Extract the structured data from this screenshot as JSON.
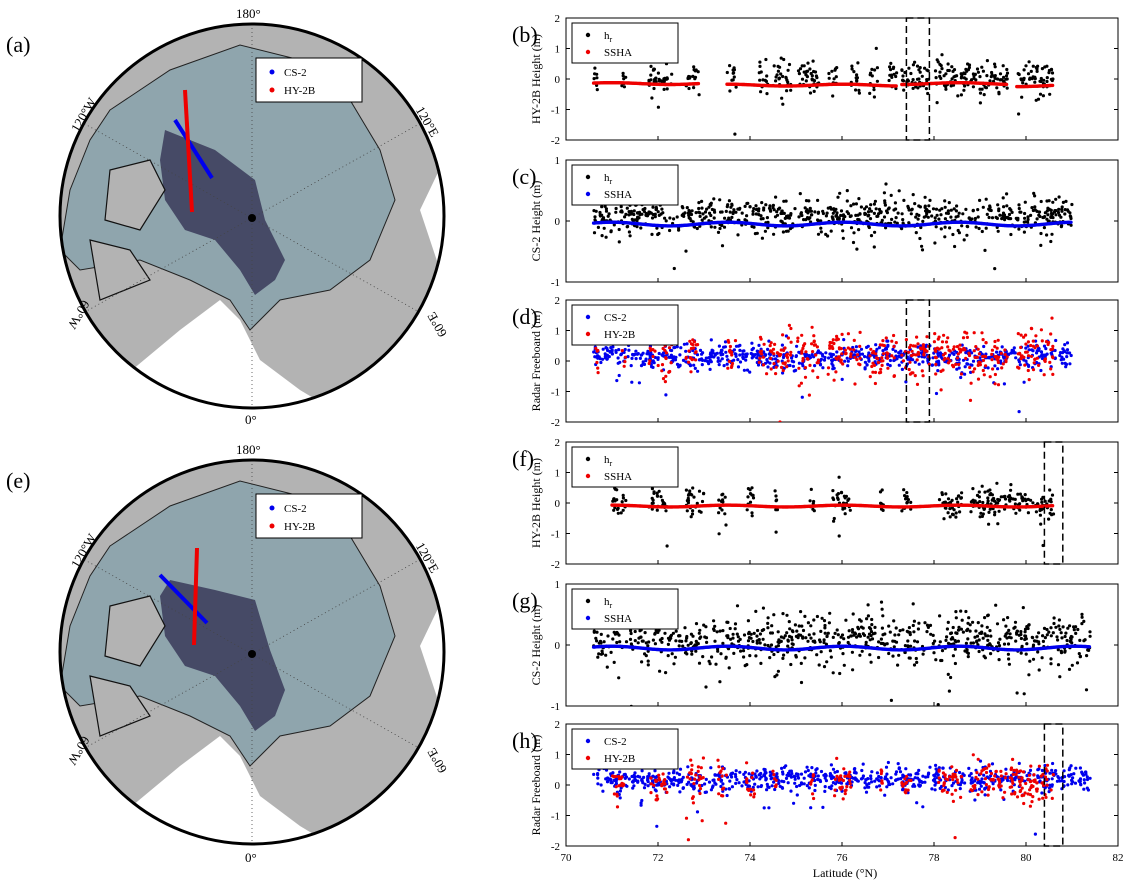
{
  "colors": {
    "land": "#b3b3b3",
    "sea_ice": "#8fa5ad",
    "mask": "#464a66",
    "ocean": "#ffffff",
    "cs2": "#0000ee",
    "hy2b": "#ee0000",
    "hr": "#000000"
  },
  "maps": [
    {
      "letter": "(a)",
      "legend": [
        "CS-2",
        "HY-2B"
      ],
      "lon_labels": {
        "top": "180°",
        "bottom": "0°",
        "upper_left": "120°W",
        "upper_right": "120°E",
        "lower_left": "60°W",
        "lower_right": "60°E"
      },
      "tracks_description": "tracks shown as lines"
    },
    {
      "letter": "(e)",
      "legend": [
        "CS-2",
        "HY-2B"
      ],
      "lon_labels": {
        "top": "180°",
        "bottom": "0°",
        "upper_left": "120°W",
        "upper_right": "120°E",
        "lower_left": "60°W",
        "lower_right": "60°E"
      }
    }
  ],
  "x_axis": {
    "label": "Latitude (°N)",
    "ticks": [
      "70",
      "72",
      "74",
      "76",
      "78",
      "80",
      "82"
    ]
  },
  "chart_data": [
    {
      "letter": "(b)",
      "type": "scatter",
      "ylabel": "HY-2B Height (m)",
      "xlim": [
        70,
        82
      ],
      "ylim": [
        -2,
        2
      ],
      "yticks": [
        "-2",
        "-1",
        "0",
        "1",
        "2"
      ],
      "legend": [
        {
          "label": "h",
          "sub": "r",
          "color": "#000000"
        },
        {
          "label": "SSHA",
          "color": "#ee0000"
        }
      ],
      "dashed_box": [
        77.4,
        77.9
      ],
      "series": [
        {
          "name": "h_r",
          "color": "#000000",
          "clusters": [
            [
              70.6,
              70.7
            ],
            [
              71.2,
              71.3
            ],
            [
              71.8,
              72.3
            ],
            [
              72.6,
              72.9
            ],
            [
              73.5,
              73.7
            ],
            [
              74.2,
              74.4
            ],
            [
              74.5,
              74.9
            ],
            [
              75.0,
              75.5
            ],
            [
              75.7,
              75.9
            ],
            [
              76.2,
              76.4
            ],
            [
              76.6,
              76.8
            ],
            [
              77.0,
              77.2
            ],
            [
              77.3,
              77.9
            ],
            [
              78.0,
              79.6
            ],
            [
              79.8,
              80.6
            ]
          ],
          "center": 0.05,
          "spread": 0.25
        },
        {
          "name": "SSHA",
          "color": "#ee0000",
          "segments": [
            [
              70.6,
              72.9,
              -0.15
            ],
            [
              73.5,
              77.2,
              -0.2
            ],
            [
              77.3,
              79.6,
              -0.15
            ],
            [
              79.8,
              80.6,
              -0.22
            ]
          ]
        }
      ]
    },
    {
      "letter": "(c)",
      "type": "scatter",
      "ylabel": "CS-2 Height (m)",
      "xlim": [
        70,
        82
      ],
      "ylim": [
        -1,
        1
      ],
      "yticks": [
        "-1",
        "0",
        "1"
      ],
      "legend": [
        {
          "label": "h",
          "sub": "r",
          "color": "#000000"
        },
        {
          "label": "SSHA",
          "color": "#0000ee"
        }
      ],
      "series": [
        {
          "name": "h_r",
          "color": "#000000",
          "clusters": [
            [
              70.6,
              81.0
            ]
          ],
          "center": 0.08,
          "spread": 0.15
        },
        {
          "name": "SSHA",
          "color": "#0000ee",
          "segments": [
            [
              70.6,
              81.0,
              -0.05
            ]
          ]
        }
      ]
    },
    {
      "letter": "(d)",
      "type": "scatter",
      "ylabel": "Radar Freeboard (m)",
      "xlim": [
        70,
        82
      ],
      "ylim": [
        -2,
        2
      ],
      "yticks": [
        "-2",
        "-1",
        "0",
        "1",
        "2"
      ],
      "legend": [
        {
          "label": "CS-2",
          "color": "#0000ee"
        },
        {
          "label": "HY-2B",
          "color": "#ee0000"
        }
      ],
      "dashed_box": [
        77.4,
        77.9
      ],
      "series": [
        {
          "name": "CS-2",
          "color": "#0000ee",
          "clusters": [
            [
              70.6,
              81.0
            ]
          ],
          "center": 0.15,
          "spread": 0.2
        },
        {
          "name": "HY-2B",
          "color": "#ee0000",
          "clusters": [
            [
              70.6,
              70.7
            ],
            [
              71.2,
              71.3
            ],
            [
              71.8,
              72.3
            ],
            [
              72.6,
              72.9
            ],
            [
              73.5,
              73.7
            ],
            [
              74.2,
              74.9
            ],
            [
              75.0,
              75.5
            ],
            [
              75.7,
              76.4
            ],
            [
              76.6,
              77.2
            ],
            [
              77.3,
              77.9
            ],
            [
              78.0,
              79.6
            ],
            [
              79.8,
              80.6
            ]
          ],
          "center": 0.25,
          "spread": 0.35
        }
      ]
    },
    {
      "letter": "(f)",
      "type": "scatter",
      "ylabel": "HY-2B Height (m)",
      "xlim": [
        70,
        82
      ],
      "ylim": [
        -2,
        2
      ],
      "yticks": [
        "-2",
        "-1",
        "0",
        "1",
        "2"
      ],
      "legend": [
        {
          "label": "h",
          "sub": "r",
          "color": "#000000"
        },
        {
          "label": "SSHA",
          "color": "#ee0000"
        }
      ],
      "dashed_box": [
        80.4,
        80.8
      ],
      "series": [
        {
          "name": "h_r",
          "color": "#000000",
          "clusters": [
            [
              71.0,
              71.3
            ],
            [
              71.8,
              72.2
            ],
            [
              72.6,
              73.0
            ],
            [
              73.3,
              73.5
            ],
            [
              73.9,
              74.1
            ],
            [
              74.5,
              74.6
            ],
            [
              75.3,
              75.4
            ],
            [
              75.8,
              76.2
            ],
            [
              76.8,
              76.9
            ],
            [
              77.3,
              77.5
            ],
            [
              78.1,
              78.6
            ],
            [
              78.8,
              80.6
            ]
          ],
          "center": 0.05,
          "spread": 0.25
        },
        {
          "name": "SSHA",
          "color": "#ee0000",
          "segments": [
            [
              71.0,
              80.6,
              -0.1
            ]
          ]
        }
      ]
    },
    {
      "letter": "(g)",
      "type": "scatter",
      "ylabel": "CS-2 Height (m)",
      "xlim": [
        70,
        82
      ],
      "ylim": [
        -1,
        1
      ],
      "yticks": [
        "-1",
        "0",
        "1"
      ],
      "legend": [
        {
          "label": "h",
          "sub": "r",
          "color": "#000000"
        },
        {
          "label": "SSHA",
          "color": "#0000ee"
        }
      ],
      "series": [
        {
          "name": "h_r",
          "color": "#000000",
          "clusters": [
            [
              70.6,
              81.4
            ]
          ],
          "center": 0.1,
          "spread": 0.2
        },
        {
          "name": "SSHA",
          "color": "#0000ee",
          "segments": [
            [
              70.6,
              81.4,
              -0.05
            ]
          ]
        }
      ]
    },
    {
      "letter": "(h)",
      "type": "scatter",
      "ylabel": "Radar Freeboard (m)",
      "xlim": [
        70,
        82
      ],
      "ylim": [
        -2,
        2
      ],
      "yticks": [
        "-2",
        "-1",
        "0",
        "1",
        "2"
      ],
      "legend": [
        {
          "label": "CS-2",
          "color": "#0000ee"
        },
        {
          "label": "HY-2B",
          "color": "#ee0000"
        }
      ],
      "dashed_box": [
        80.4,
        80.8
      ],
      "series": [
        {
          "name": "CS-2",
          "color": "#0000ee",
          "clusters": [
            [
              70.6,
              81.4
            ]
          ],
          "center": 0.2,
          "spread": 0.2
        },
        {
          "name": "HY-2B",
          "color": "#ee0000",
          "clusters": [
            [
              71.0,
              71.3
            ],
            [
              71.8,
              72.2
            ],
            [
              72.6,
              73.0
            ],
            [
              73.3,
              73.5
            ],
            [
              73.9,
              74.1
            ],
            [
              74.5,
              74.6
            ],
            [
              75.3,
              75.4
            ],
            [
              75.8,
              76.2
            ],
            [
              76.8,
              76.9
            ],
            [
              77.3,
              77.5
            ],
            [
              78.1,
              78.6
            ],
            [
              78.8,
              80.6
            ]
          ],
          "center": 0.1,
          "spread": 0.3
        }
      ]
    }
  ]
}
